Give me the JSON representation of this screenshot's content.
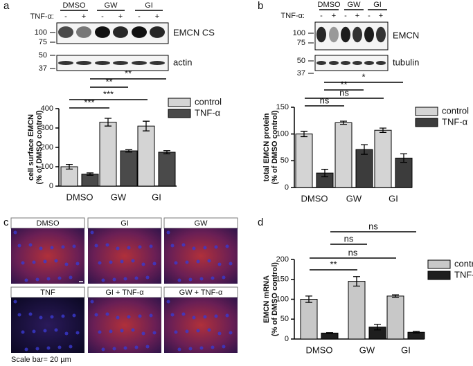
{
  "panel_labels": [
    "a",
    "b",
    "c",
    "d"
  ],
  "blot_a": {
    "conditions": [
      "DMSO",
      "GW",
      "GI"
    ],
    "treatment": "TNF-α:",
    "signs": [
      "-",
      "+",
      "-",
      "+",
      "-",
      "+"
    ],
    "markers": [
      "100",
      "75",
      "50",
      "37"
    ],
    "labels": [
      "EMCN CS",
      "actin"
    ]
  },
  "blot_b": {
    "conditions": [
      "DMSO",
      "GW",
      "GI"
    ],
    "treatment": "TNF-α:",
    "signs": [
      "-",
      "+",
      "-",
      "+",
      "-",
      "+"
    ],
    "markers": [
      "100",
      "75",
      "50",
      "37"
    ],
    "labels": [
      "EMCN",
      "tubulin"
    ]
  },
  "micrographs": {
    "labels": [
      "DMSO",
      "GI",
      "GW",
      "TNF",
      "GI + TNF-α",
      "GW + TNF-α"
    ],
    "scale_bar": "Scale bar= 20 µm"
  },
  "chart_data": [
    {
      "type": "bar",
      "ylabel": [
        "cell surface EMCN",
        "(% of DMSO control)"
      ],
      "categories": [
        "DMSO",
        "GW",
        "GI"
      ],
      "series": [
        {
          "name": "control",
          "color": "#d4d4d4",
          "values": [
            100,
            330,
            310
          ],
          "errors": [
            12,
            20,
            25
          ]
        },
        {
          "name": "TNF-α",
          "color": "#4a4a4a",
          "values": [
            62,
            182,
            175
          ],
          "errors": [
            6,
            6,
            8
          ]
        }
      ],
      "ylim": [
        0,
        400
      ],
      "yticks": [
        0,
        100,
        200,
        300,
        400
      ],
      "annotations": [
        "***",
        "***",
        "**",
        "**"
      ]
    },
    {
      "type": "bar",
      "ylabel": [
        "total EMCN protein",
        "(% of DMSO control)"
      ],
      "categories": [
        "DMSO",
        "GW",
        "GI"
      ],
      "series": [
        {
          "name": "control",
          "color": "#d4d4d4",
          "values": [
            100,
            121,
            107
          ],
          "errors": [
            5,
            3,
            4
          ]
        },
        {
          "name": "TNF-α",
          "color": "#3c3c3c",
          "values": [
            27,
            71,
            55
          ],
          "errors": [
            7,
            9,
            8
          ]
        }
      ],
      "ylim": [
        0,
        150
      ],
      "yticks": [
        0,
        50,
        100,
        150
      ],
      "annotations": [
        "ns",
        "ns",
        "**",
        "*"
      ]
    },
    {
      "type": "bar",
      "ylabel": [
        "EMCN mRNA",
        "(% of DMSO control)"
      ],
      "categories": [
        "DMSO",
        "GW",
        "GI"
      ],
      "series": [
        {
          "name": "control",
          "color": "#c8c8c8",
          "values": [
            100,
            145,
            108
          ],
          "errors": [
            8,
            12,
            3
          ]
        },
        {
          "name": "TNF-α",
          "color": "#1e1e1e",
          "values": [
            15,
            30,
            17
          ],
          "errors": [
            1,
            7,
            2
          ]
        }
      ],
      "ylim": [
        0,
        200
      ],
      "yticks": [
        0,
        50,
        100,
        150,
        200
      ],
      "annotations": [
        "**",
        "ns",
        "ns",
        "ns"
      ]
    }
  ]
}
